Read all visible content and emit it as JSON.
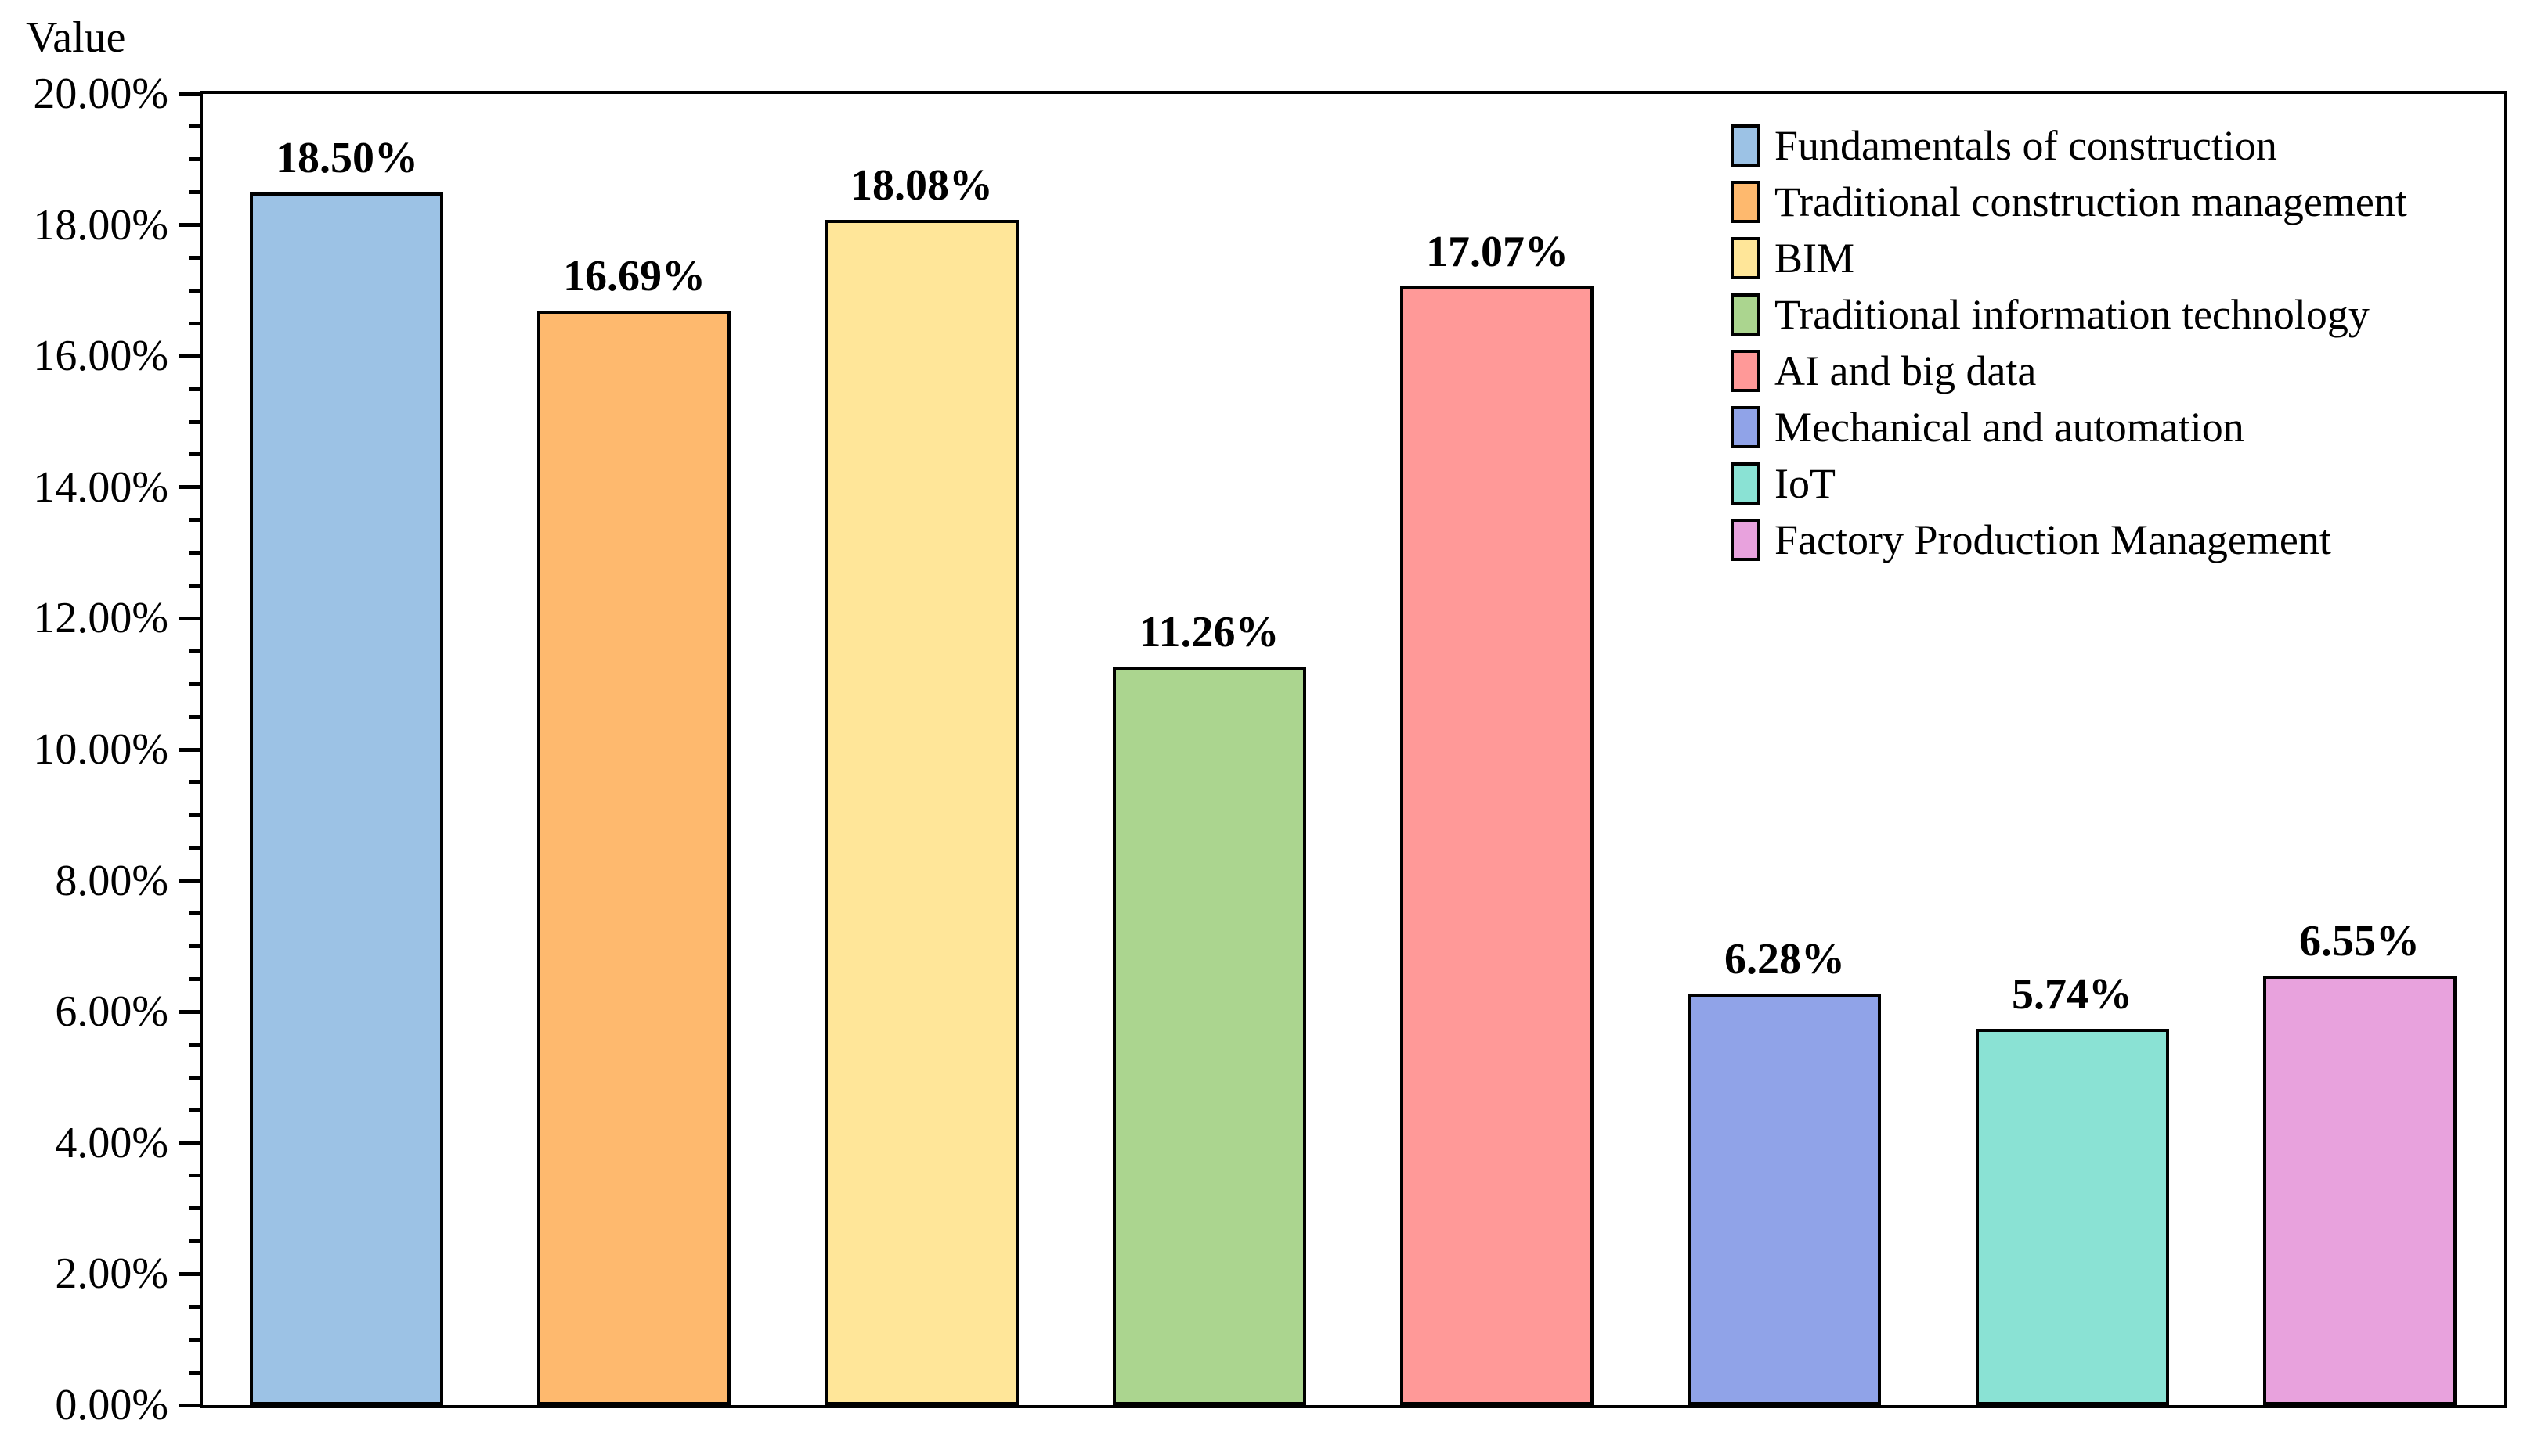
{
  "chart_data": {
    "type": "bar",
    "title": "",
    "xlabel": "",
    "ylabel": "Value",
    "ylim": [
      0,
      20
    ],
    "ytick_step": 2,
    "minor_tick_step": 0.5,
    "ytick_labels": [
      "0.00%",
      "2.00%",
      "4.00%",
      "6.00%",
      "8.00%",
      "10.00%",
      "12.00%",
      "14.00%",
      "16.00%",
      "18.00%",
      "20.00%"
    ],
    "grid": false,
    "legend_position": "top-right-inside",
    "categories": [
      "Fundamentals of construction",
      "Traditional construction management",
      "BIM",
      "Traditional information technology",
      "AI and big data",
      "Mechanical and automation",
      "IoT",
      "Factory Production Management"
    ],
    "values": [
      18.5,
      16.69,
      18.08,
      11.26,
      17.07,
      6.28,
      5.74,
      6.55
    ],
    "bar_labels": [
      "18.50%",
      "16.69%",
      "18.08%",
      "11.26%",
      "17.07%",
      "6.28%",
      "5.74%",
      "6.55%"
    ],
    "colors": [
      "#9CC2E5",
      "#FEB96E",
      "#FFE699",
      "#ABD58F",
      "#FF9998",
      "#90A3E8",
      "#8AE2D4",
      "#E8A2DD"
    ],
    "bar_edge_color": "#000000",
    "axis_color": "#000000",
    "background_color": "#FFFFFF"
  }
}
